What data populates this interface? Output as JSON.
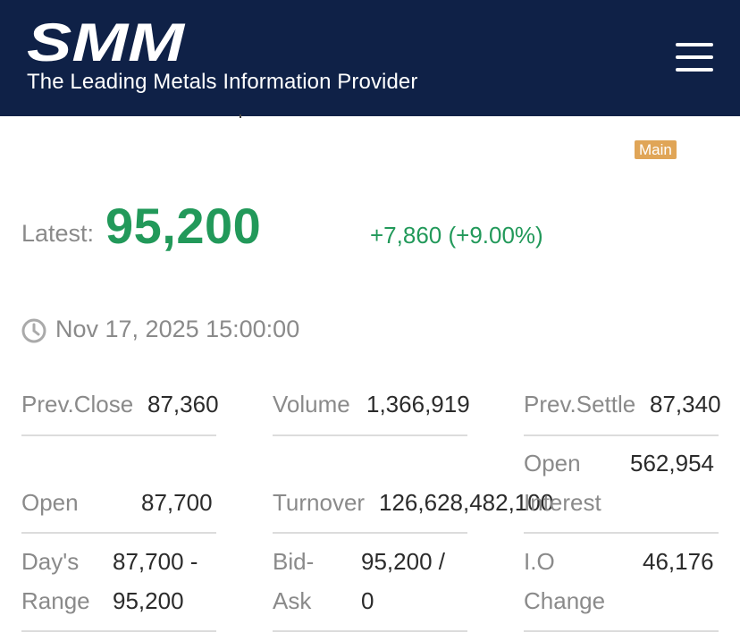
{
  "header": {
    "logo_text": "SMM",
    "tagline": "The Leading Metals Information Provider",
    "menu_icon": "hamburger-menu-icon",
    "background_color": "#0f2147"
  },
  "quote": {
    "badge": "Main",
    "latest_label": "Latest:",
    "latest_value": "95,200",
    "change": "+7,860 (+9.00%)",
    "timestamp": "Nov 17, 2025 15:00:00",
    "up_color": "#22995a"
  },
  "stats": {
    "prev_close": {
      "label": "Prev.Close",
      "value": "87,360"
    },
    "volume": {
      "label": "Volume",
      "value": "1,366,919"
    },
    "prev_settle": {
      "label": "Prev.Settle",
      "value": "87,340"
    },
    "open": {
      "label": "Open",
      "value": "87,700"
    },
    "turnover": {
      "label": "Turnover",
      "value": "126,628,482,100"
    },
    "open_interest": {
      "label_line1": "Open",
      "label_line2": "Interest",
      "value": "562,954"
    },
    "days_range": {
      "label_line1": "Day's",
      "label_line2": "Range",
      "value_line1": "87,700 -",
      "value_line2": "95,200"
    },
    "bid_ask": {
      "label_line1": "Bid-",
      "label_line2": "Ask",
      "value_line1": "95,200 /",
      "value_line2": "0"
    },
    "io_change": {
      "label_line1": "I.O",
      "label_line2": "Change",
      "value": "46,176"
    }
  }
}
